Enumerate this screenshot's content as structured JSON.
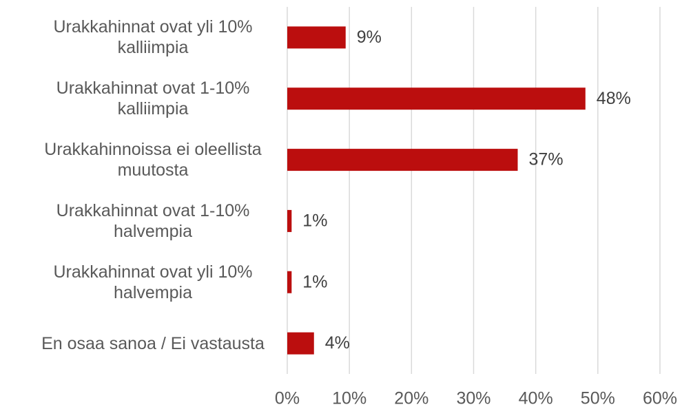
{
  "chart_data": {
    "type": "bar",
    "orientation": "horizontal",
    "categories": [
      "Urakkahinnat ovat yli 10%\nkalliimpia",
      "Urakkahinnat ovat 1-10%\nkalliimpia",
      "Urakkahinnoissa ei oleellista\nmuutosta",
      "Urakkahinnat ovat 1-10%\nhalvempia",
      "Urakkahinnat ovat yli 10%\nhalvempia",
      "En osaa sanoa / Ei vastausta"
    ],
    "values": [
      9.4,
      48,
      37.1,
      0.7,
      0.7,
      4.3
    ],
    "value_labels": [
      "9%",
      "48%",
      "37%",
      "1%",
      "1%",
      "4%"
    ],
    "color": "#bb0e0e",
    "xlim": [
      0,
      60
    ],
    "xticks": [
      {
        "value": 0,
        "label": "0%"
      },
      {
        "value": 10,
        "label": "10%"
      },
      {
        "value": 20,
        "label": "20%"
      },
      {
        "value": 30,
        "label": "30%"
      },
      {
        "value": 40,
        "label": "40%"
      },
      {
        "value": 50,
        "label": "50%"
      },
      {
        "value": 60,
        "label": "60%"
      }
    ],
    "grid": true
  }
}
